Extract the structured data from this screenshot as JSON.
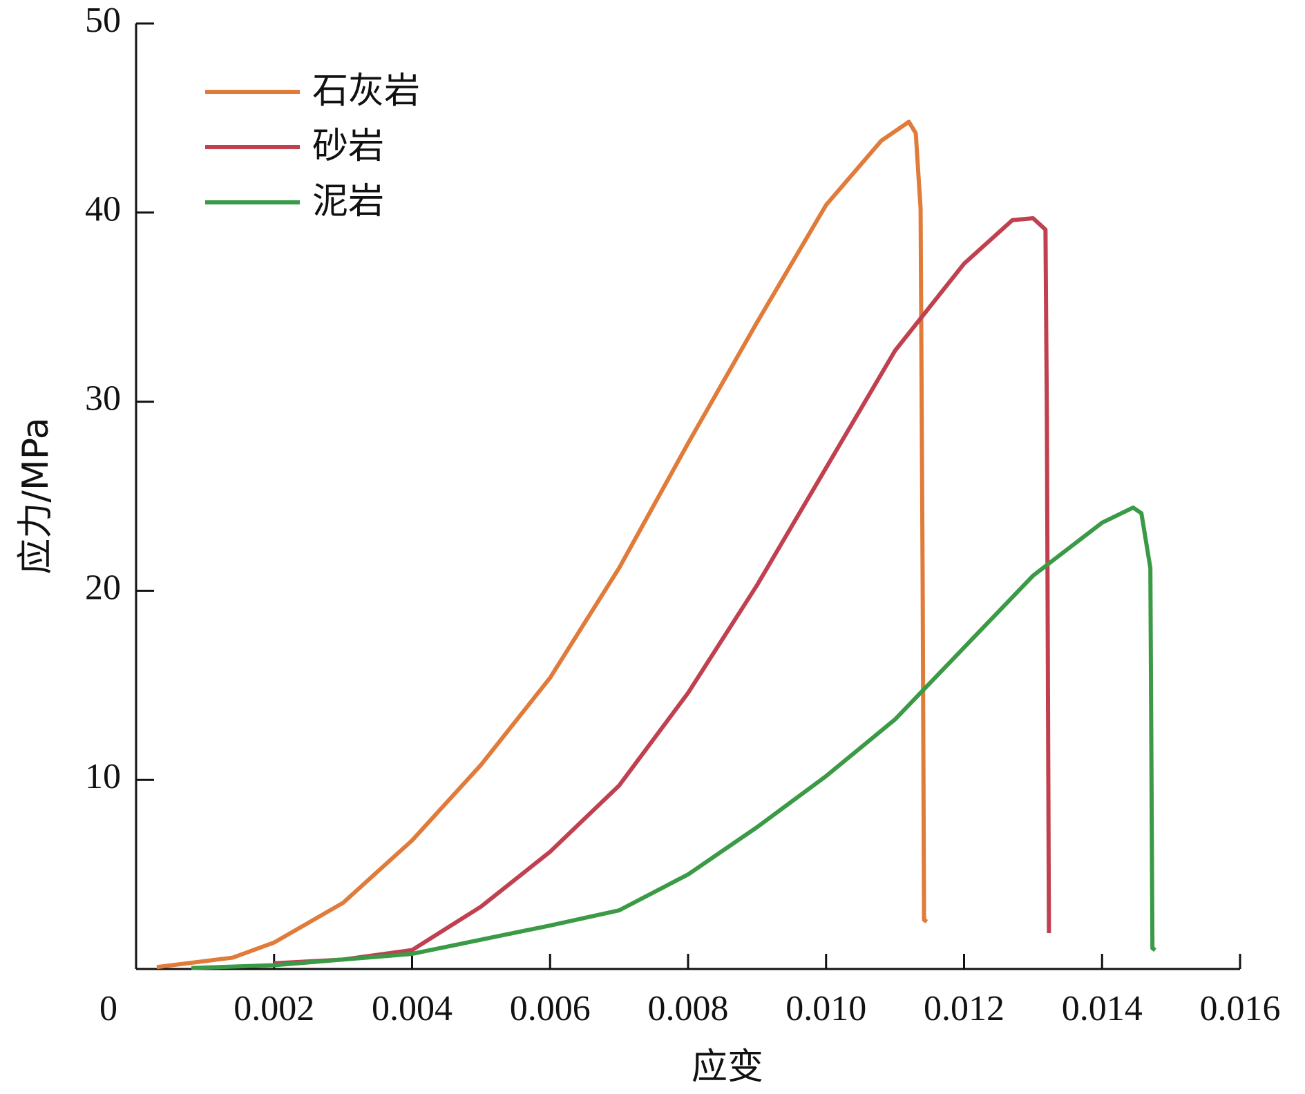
{
  "chart_data": {
    "type": "line",
    "xlabel": "应变",
    "ylabel": "应力/MPa",
    "xlim": [
      0,
      0.016
    ],
    "ylim": [
      0,
      50
    ],
    "xticks": [
      0,
      0.002,
      0.004,
      0.006,
      0.008,
      {
        "value": 0.01,
        "label": "0.010"
      },
      0.012,
      0.014,
      0.016
    ],
    "yticks": [
      10,
      20,
      30,
      40,
      50
    ],
    "legend": "upper left",
    "series": [
      {
        "name": "石灰岩",
        "color": "#e07b39",
        "x": [
          0.0003,
          0.0014,
          0.002,
          0.003,
          0.004,
          0.005,
          0.006,
          0.007,
          0.008,
          0.009,
          0.01,
          0.0108,
          0.0112,
          0.0113,
          0.01137,
          0.0114,
          0.01142,
          0.01146
        ],
        "values": [
          0.1,
          0.6,
          1.4,
          3.5,
          6.8,
          10.8,
          15.4,
          21.2,
          27.8,
          34.2,
          40.4,
          43.8,
          44.8,
          44.2,
          40.2,
          20.3,
          2.6,
          2.5
        ]
      },
      {
        "name": "砂岩",
        "color": "#c0404f",
        "x": [
          0.002,
          0.003,
          0.004,
          0.005,
          0.006,
          0.007,
          0.008,
          0.009,
          0.01,
          0.011,
          0.012,
          0.0127,
          0.013,
          0.01318,
          0.0132,
          0.01323
        ],
        "values": [
          0.3,
          0.5,
          1.0,
          3.3,
          6.2,
          9.7,
          14.6,
          20.3,
          26.5,
          32.7,
          37.3,
          39.6,
          39.7,
          39.1,
          29.2,
          1.9
        ]
      },
      {
        "name": "泥岩",
        "color": "#3a9a45",
        "x": [
          0.0008,
          0.002,
          0.004,
          0.006,
          0.007,
          0.008,
          0.009,
          0.01,
          0.011,
          0.012,
          0.013,
          0.014,
          0.01445,
          0.01457,
          0.0147,
          0.01473,
          0.01477
        ],
        "values": [
          0.05,
          0.2,
          0.8,
          2.3,
          3.1,
          5.0,
          7.5,
          10.2,
          13.2,
          17.0,
          20.8,
          23.6,
          24.4,
          24.1,
          21.2,
          1.1,
          1.0
        ]
      }
    ]
  }
}
